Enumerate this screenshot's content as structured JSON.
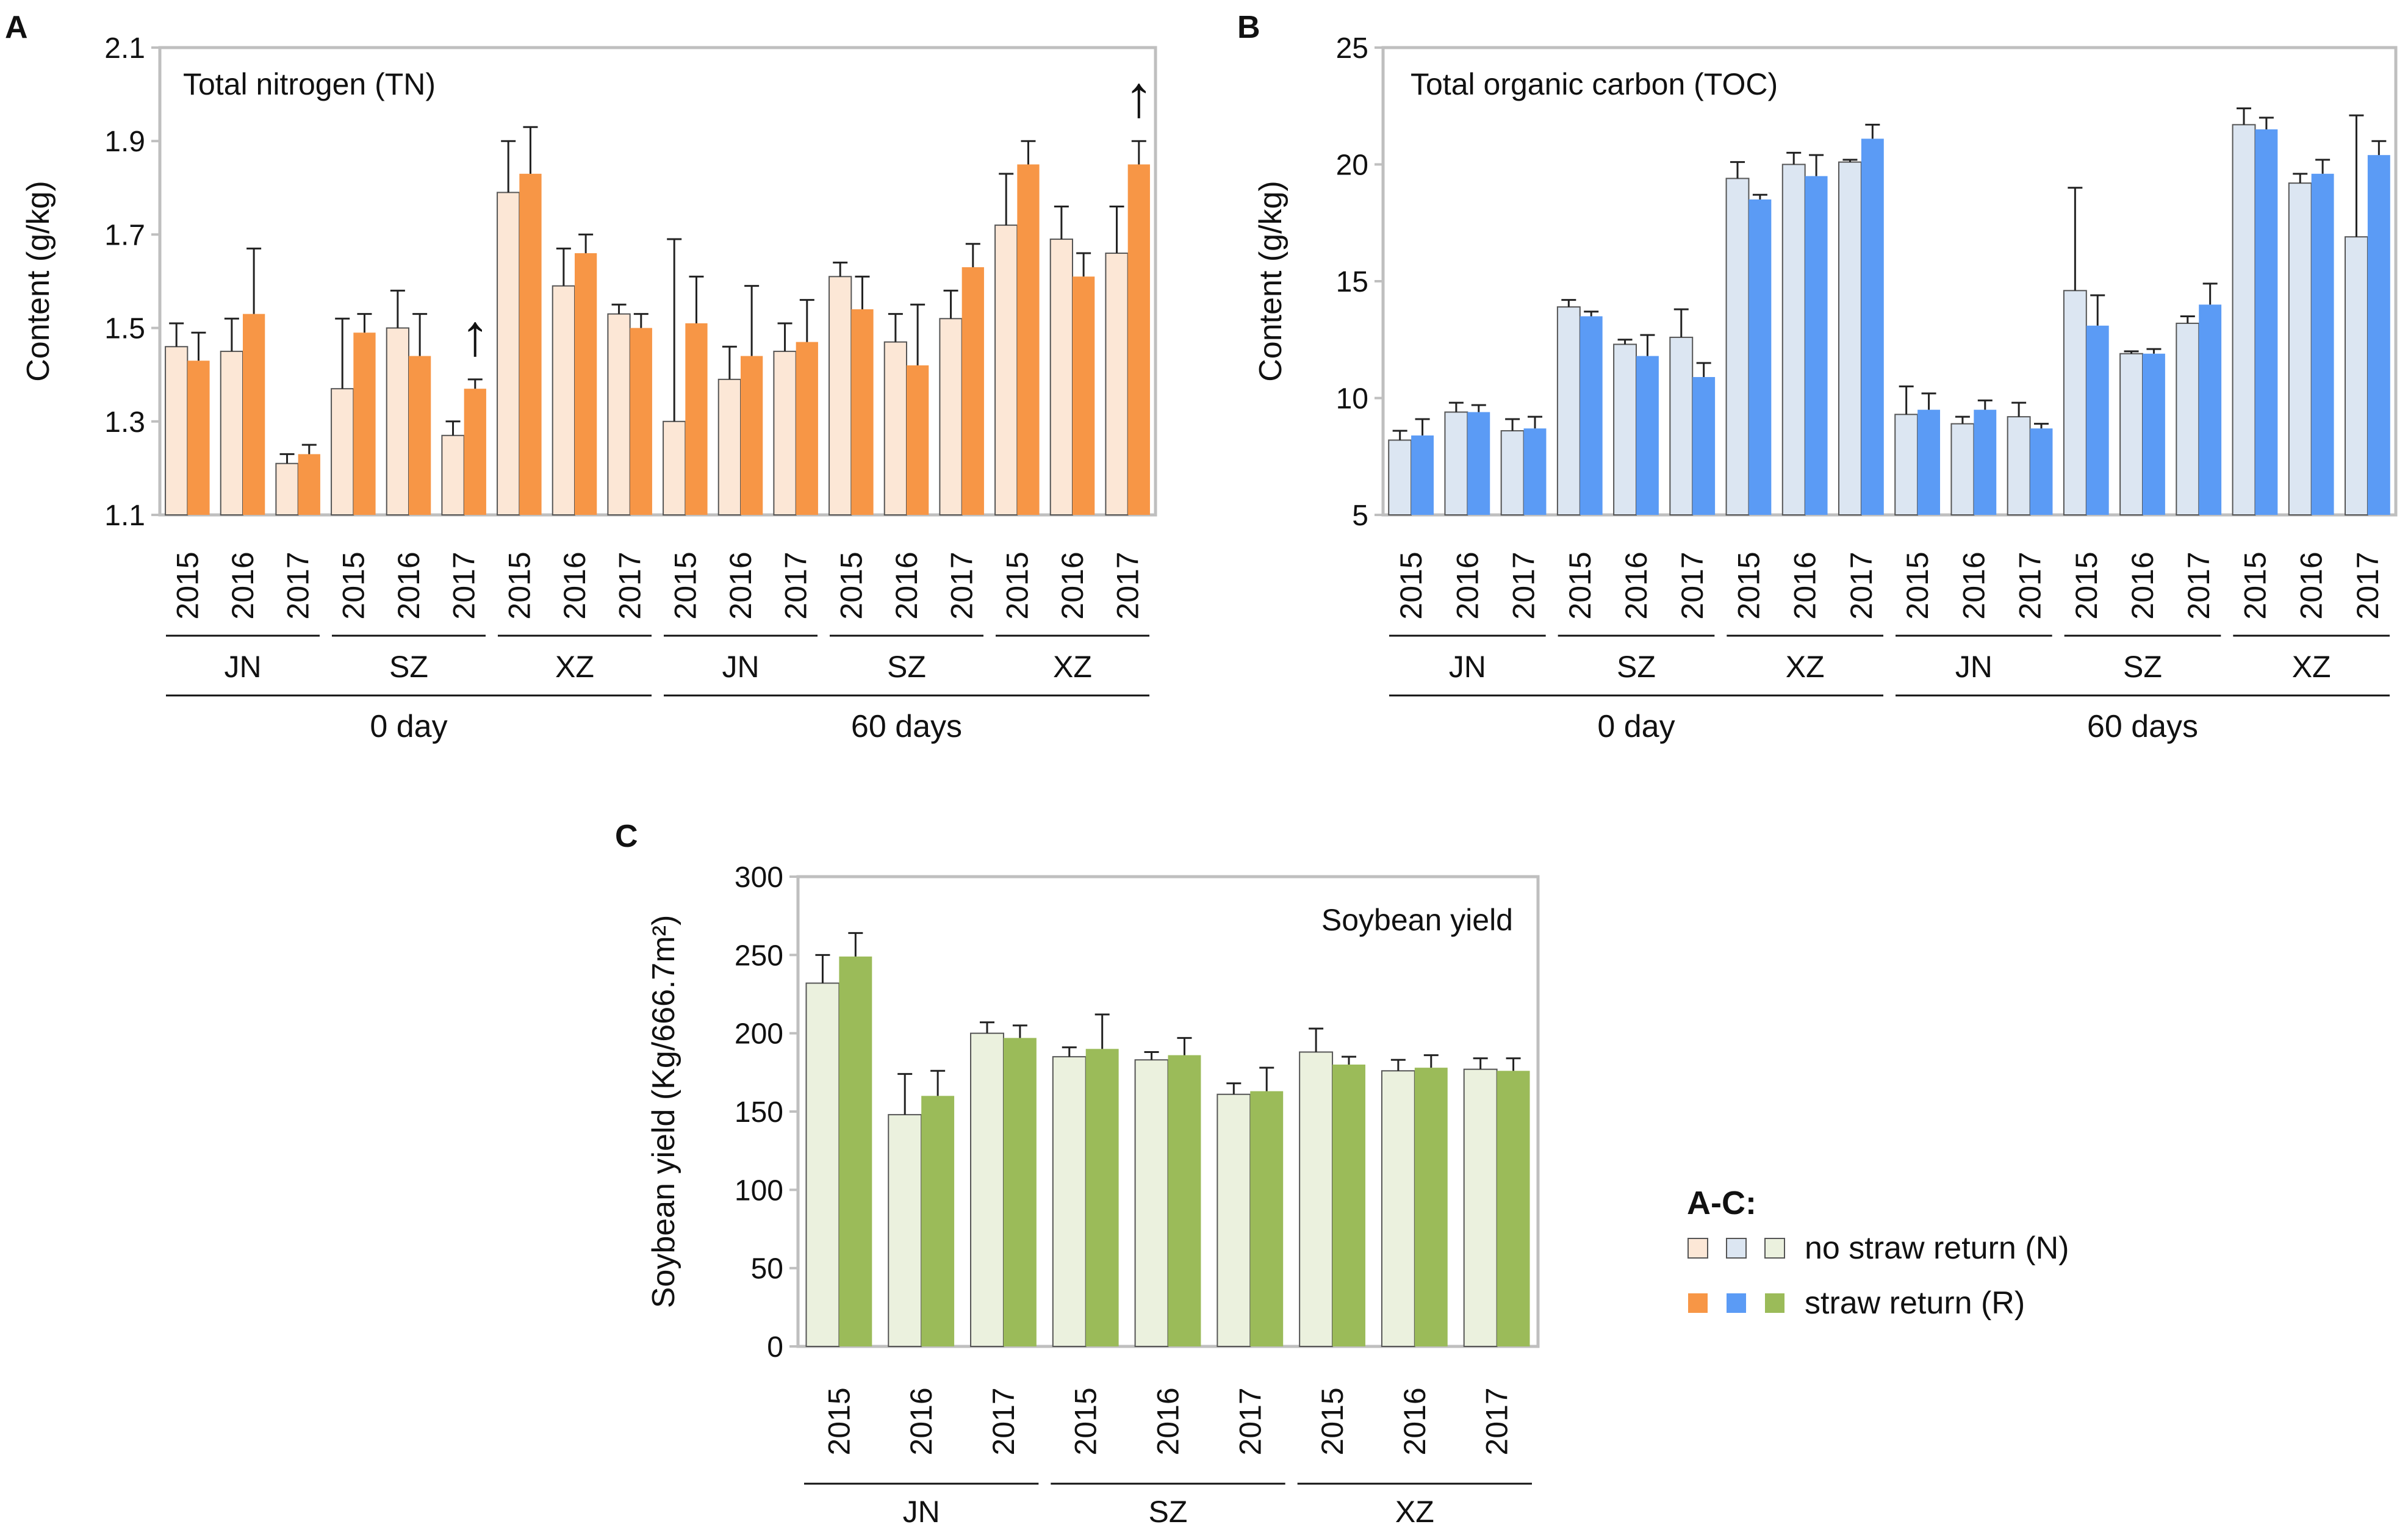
{
  "colors": {
    "A": {
      "N": "#FCE7D6",
      "R": "#F79646"
    },
    "B": {
      "N": "#DCE6F2",
      "R": "#5B9BF5"
    },
    "C": {
      "N": "#EBF1DE",
      "R": "#9BBB59"
    },
    "frame": "#BFBFBF",
    "bar_edge": "#555555",
    "ink": "#111111"
  },
  "legend": {
    "title": "A-C:",
    "items": [
      {
        "label": "no straw return (N)",
        "key": "N"
      },
      {
        "label": "straw return (R)",
        "key": "R"
      }
    ]
  },
  "chart_data": [
    {
      "panel": "A",
      "type": "bar",
      "title": "Total nitrogen (TN)",
      "ylabel": "Content (g/kg)",
      "ylim": [
        1.1,
        2.1
      ],
      "yticks": [
        "1.1",
        "1.3",
        "1.5",
        "1.7",
        "1.9",
        "2.1"
      ],
      "years": [
        "2015",
        "2016",
        "2017"
      ],
      "sites": [
        "JN",
        "SZ",
        "XZ"
      ],
      "periods": [
        "0 day",
        "60 days"
      ],
      "series": [
        {
          "name": "no straw return (N)",
          "key": "N",
          "values": [
            1.46,
            1.45,
            1.21,
            1.37,
            1.5,
            1.27,
            1.79,
            1.59,
            1.53,
            1.3,
            1.39,
            1.45,
            1.61,
            1.47,
            1.52,
            1.72,
            1.69,
            1.66
          ],
          "errors": [
            0.05,
            0.07,
            0.02,
            0.15,
            0.08,
            0.03,
            0.11,
            0.08,
            0.02,
            0.39,
            0.07,
            0.06,
            0.03,
            0.06,
            0.06,
            0.11,
            0.07,
            0.1
          ]
        },
        {
          "name": "straw return (R)",
          "key": "R",
          "values": [
            1.43,
            1.53,
            1.23,
            1.49,
            1.44,
            1.37,
            1.83,
            1.66,
            1.5,
            1.51,
            1.44,
            1.47,
            1.54,
            1.42,
            1.63,
            1.85,
            1.61,
            1.85
          ],
          "errors": [
            0.06,
            0.14,
            0.02,
            0.04,
            0.09,
            0.02,
            0.1,
            0.04,
            0.03,
            0.1,
            0.15,
            0.09,
            0.07,
            0.13,
            0.05,
            0.05,
            0.05,
            0.05
          ]
        }
      ],
      "annotations": [
        {
          "text": "↑",
          "group_index": 5
        },
        {
          "text": "↑",
          "group_index": 17
        }
      ]
    },
    {
      "panel": "B",
      "type": "bar",
      "title": "Total organic carbon (TOC)",
      "ylabel": "Content (g/kg)",
      "ylim": [
        5,
        25
      ],
      "yticks": [
        "5",
        "10",
        "15",
        "20",
        "25"
      ],
      "years": [
        "2015",
        "2016",
        "2017"
      ],
      "sites": [
        "JN",
        "SZ",
        "XZ"
      ],
      "periods": [
        "0 day",
        "60 days"
      ],
      "series": [
        {
          "name": "no straw return (N)",
          "key": "N",
          "values": [
            8.2,
            9.4,
            8.6,
            13.9,
            12.3,
            12.6,
            19.4,
            20.0,
            20.1,
            9.3,
            8.9,
            9.2,
            14.6,
            11.9,
            13.2,
            21.7,
            19.2,
            16.9
          ],
          "errors": [
            0.4,
            0.4,
            0.5,
            0.3,
            0.2,
            1.2,
            0.7,
            0.5,
            0.1,
            1.2,
            0.3,
            0.6,
            4.4,
            0.1,
            0.3,
            0.7,
            0.4,
            5.2
          ]
        },
        {
          "name": "straw return (R)",
          "key": "R",
          "values": [
            8.4,
            9.4,
            8.7,
            13.5,
            11.8,
            10.9,
            18.5,
            19.5,
            21.1,
            9.5,
            9.5,
            8.7,
            13.1,
            11.9,
            14.0,
            21.5,
            19.6,
            20.4
          ],
          "errors": [
            0.7,
            0.3,
            0.5,
            0.2,
            0.9,
            0.6,
            0.2,
            0.9,
            0.6,
            0.7,
            0.4,
            0.2,
            1.3,
            0.2,
            0.9,
            0.5,
            0.6,
            0.6
          ]
        }
      ]
    },
    {
      "panel": "C",
      "type": "bar",
      "title": "Soybean yield",
      "ylabel": "Soybean yield (Kg/666.7m²)",
      "ylim": [
        0,
        300
      ],
      "yticks": [
        "0",
        "50",
        "100",
        "150",
        "200",
        "250",
        "300"
      ],
      "years": [
        "2015",
        "2016",
        "2017"
      ],
      "sites": [
        "JN",
        "SZ",
        "XZ"
      ],
      "series": [
        {
          "name": "no straw return (N)",
          "key": "N",
          "values": [
            232,
            148,
            200,
            185,
            183,
            161,
            188,
            176,
            177
          ],
          "errors": [
            18,
            26,
            7,
            6,
            5,
            7,
            15,
            7,
            7
          ]
        },
        {
          "name": "straw return (R)",
          "key": "R",
          "values": [
            249,
            160,
            197,
            190,
            186,
            163,
            180,
            178,
            176
          ],
          "errors": [
            15,
            16,
            8,
            22,
            11,
            15,
            5,
            8,
            8
          ]
        }
      ]
    }
  ]
}
